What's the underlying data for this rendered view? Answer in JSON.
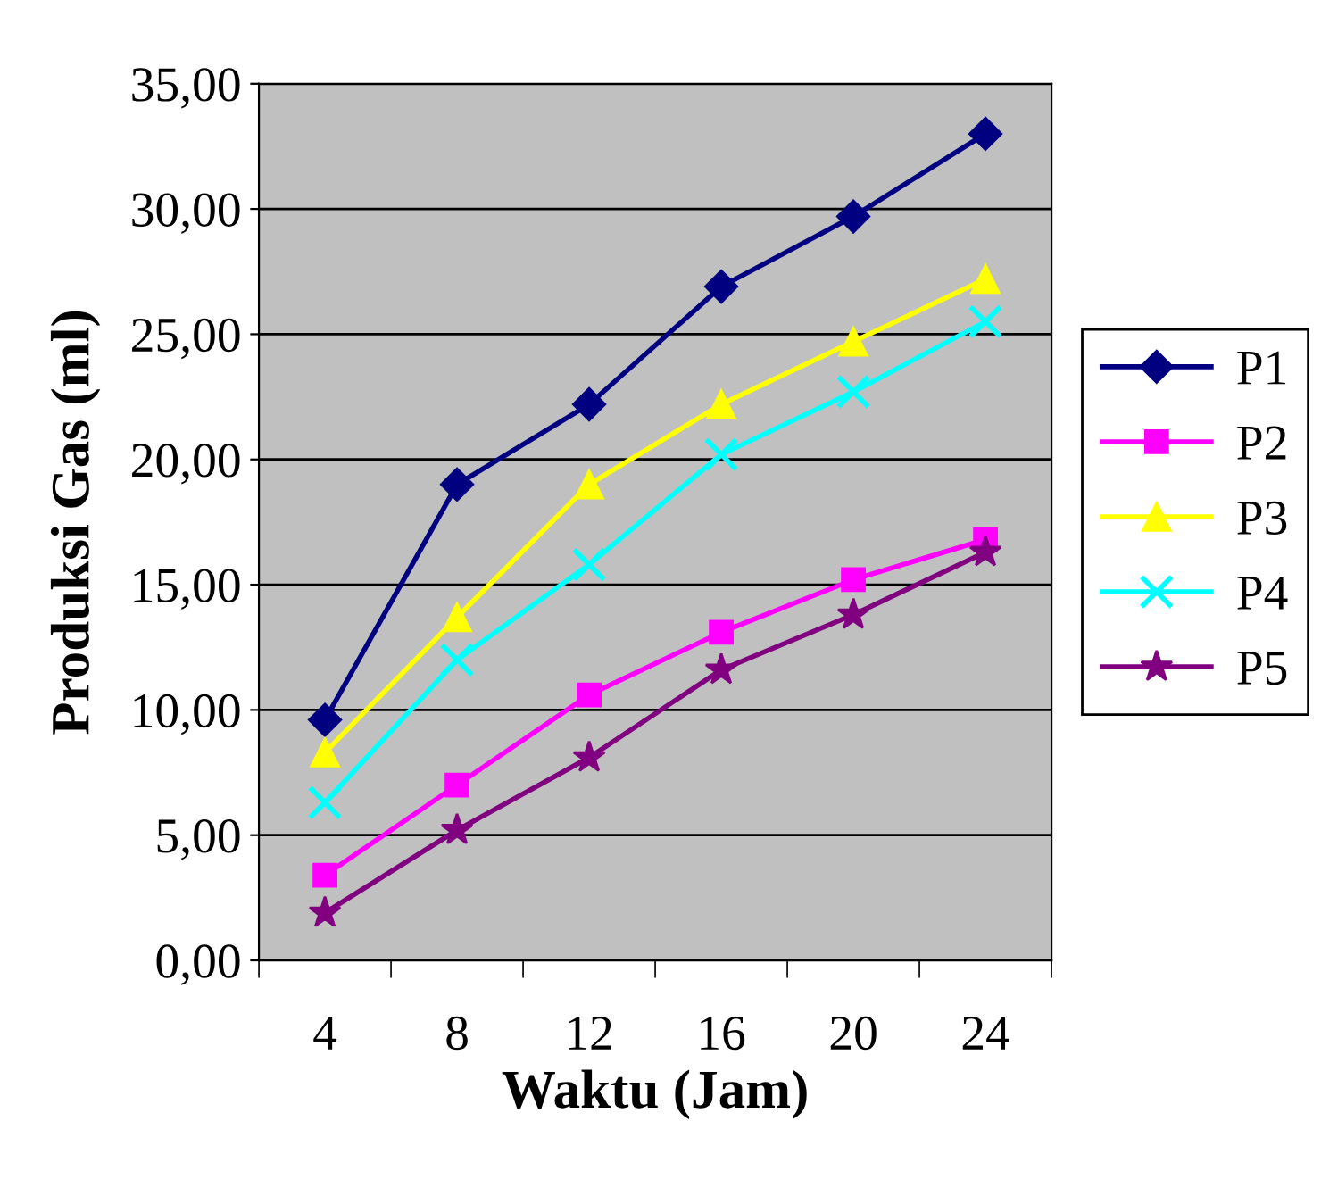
{
  "chart_data": {
    "type": "line",
    "xlabel": "Waktu (Jam)",
    "ylabel": "Produksi Gas (ml)",
    "categories": [
      "4",
      "8",
      "12",
      "16",
      "20",
      "24"
    ],
    "series": [
      {
        "name": "P1",
        "color": "#000080",
        "marker": "diamond",
        "values": [
          9.6,
          19.0,
          22.2,
          26.9,
          29.7,
          33.0
        ]
      },
      {
        "name": "P2",
        "color": "#ff00ff",
        "marker": "square",
        "values": [
          3.4,
          7.0,
          10.6,
          13.1,
          15.2,
          16.8
        ]
      },
      {
        "name": "P3",
        "color": "#ffff00",
        "marker": "triangle",
        "values": [
          8.3,
          13.7,
          19.0,
          22.2,
          24.7,
          27.2
        ]
      },
      {
        "name": "P4",
        "color": "#00ffff",
        "marker": "cross",
        "values": [
          6.3,
          12.0,
          15.8,
          20.2,
          22.7,
          25.5
        ]
      },
      {
        "name": "P5",
        "color": "#800080",
        "marker": "star",
        "values": [
          1.9,
          5.2,
          8.1,
          11.6,
          13.8,
          16.3
        ]
      }
    ],
    "ylim": [
      0,
      35
    ],
    "yticks": [
      {
        "value": 0,
        "label": "0,00"
      },
      {
        "value": 5,
        "label": "5,00"
      },
      {
        "value": 10,
        "label": "10,00"
      },
      {
        "value": 15,
        "label": "15,00"
      },
      {
        "value": 20,
        "label": "20,00"
      },
      {
        "value": 25,
        "label": "25,00"
      },
      {
        "value": 30,
        "label": "30,00"
      },
      {
        "value": 35,
        "label": "35,00"
      }
    ],
    "grid": "y",
    "legend": "right",
    "line_style": "solid"
  }
}
